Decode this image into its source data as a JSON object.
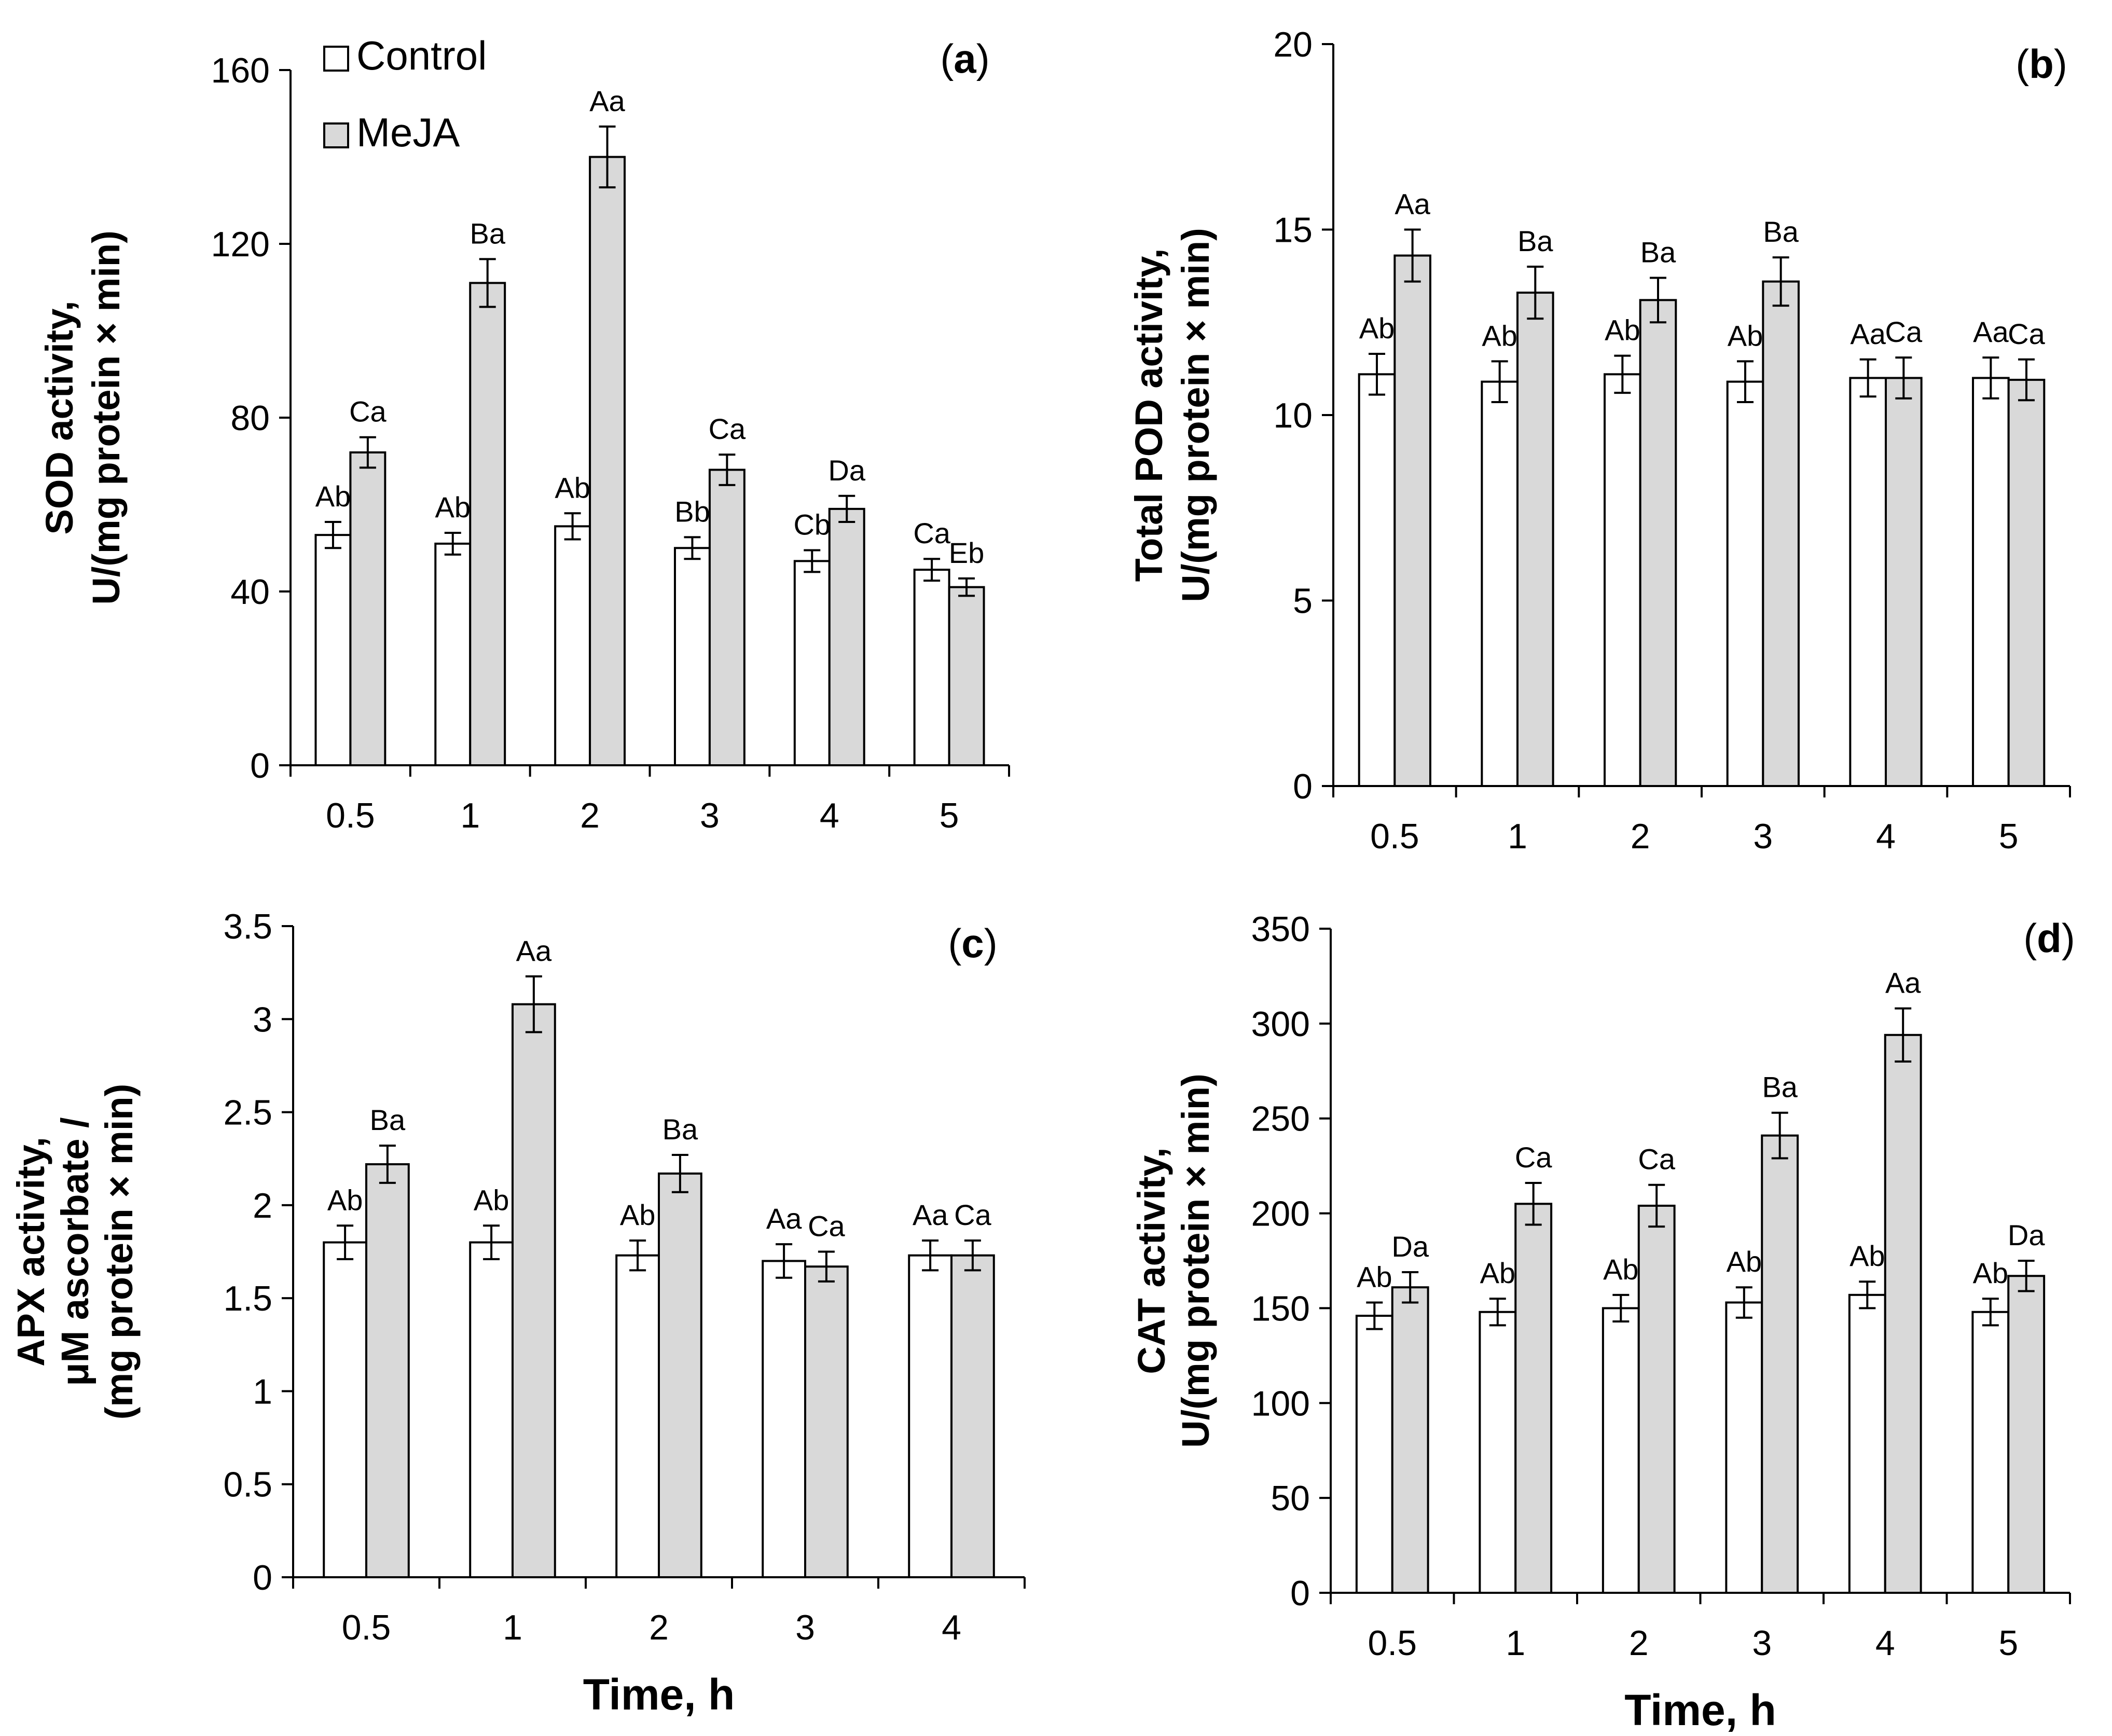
{
  "chart_data": [
    {
      "type": "bar",
      "panel_label": "a",
      "ylabel": [
        "SOD activity,",
        "U/(mg protein × min)"
      ],
      "xlabel": "",
      "ylim": [
        0,
        160
      ],
      "yticks": [
        "0",
        "40",
        "80",
        "120",
        "160"
      ],
      "categories": [
        "0.5",
        "1",
        "2",
        "3",
        "4",
        "5"
      ],
      "series": [
        {
          "name": "Control",
          "color": "#ffffff",
          "values": [
            53,
            51,
            55,
            50,
            47,
            45
          ],
          "errors": [
            3,
            2.5,
            3,
            2.5,
            2.5,
            2.5
          ],
          "labels": [
            "Ab",
            "Ab",
            "Ab",
            "Bb",
            "Cb",
            "Ca"
          ]
        },
        {
          "name": "MeJA",
          "color": "#d9d9d9",
          "values": [
            72,
            111,
            140,
            68,
            59,
            41
          ],
          "errors": [
            3.5,
            5.5,
            7,
            3.5,
            3,
            2
          ],
          "labels": [
            "Ca",
            "Ba",
            "Aa",
            "Ca",
            "Da",
            "Eb"
          ]
        }
      ],
      "legend": [
        "Control",
        "MeJA"
      ]
    },
    {
      "type": "bar",
      "panel_label": "b",
      "ylabel": [
        "Total POD activity,",
        "U/(mg protein × min)"
      ],
      "xlabel": "",
      "ylim": [
        0,
        20
      ],
      "yticks": [
        "0",
        "5",
        "10",
        "15",
        "20"
      ],
      "categories": [
        "0.5",
        "1",
        "2",
        "3",
        "4",
        "5"
      ],
      "series": [
        {
          "name": "Control",
          "color": "#ffffff",
          "values": [
            11.1,
            10.9,
            11.1,
            10.9,
            11.0,
            11.0
          ],
          "errors": [
            0.55,
            0.55,
            0.5,
            0.55,
            0.5,
            0.55
          ],
          "labels": [
            "Ab",
            "Ab",
            "Ab",
            "Ab",
            "Aa",
            "Aa"
          ]
        },
        {
          "name": "MeJA",
          "color": "#d9d9d9",
          "values": [
            14.3,
            13.3,
            13.1,
            13.6,
            11.0,
            10.95
          ],
          "errors": [
            0.7,
            0.7,
            0.6,
            0.65,
            0.55,
            0.55
          ],
          "labels": [
            "Aa",
            "Ba",
            "Ba",
            "Ba",
            "Ca",
            "Ca"
          ]
        }
      ]
    },
    {
      "type": "bar",
      "panel_label": "c",
      "ylabel": [
        "APX activity,",
        "μM ascorbate /",
        "(mg protein × min)"
      ],
      "xlabel": "Time, h",
      "ylim": [
        0,
        3.5
      ],
      "yticks": [
        "0",
        "0.5",
        "1",
        "1.5",
        "2",
        "2.5",
        "3",
        "3.5"
      ],
      "categories": [
        "0.5",
        "1",
        "2",
        "3",
        "4"
      ],
      "series": [
        {
          "name": "Control",
          "color": "#ffffff",
          "values": [
            1.8,
            1.8,
            1.73,
            1.7,
            1.73
          ],
          "errors": [
            0.09,
            0.09,
            0.08,
            0.09,
            0.08
          ],
          "labels": [
            "Ab",
            "Ab",
            "Ab",
            "Aa",
            "Aa"
          ]
        },
        {
          "name": "MeJA",
          "color": "#d9d9d9",
          "values": [
            2.22,
            3.08,
            2.17,
            1.67,
            1.73
          ],
          "errors": [
            0.1,
            0.15,
            0.1,
            0.08,
            0.08
          ],
          "labels": [
            "Ba",
            "Aa",
            "Ba",
            "Ca",
            "Ca"
          ]
        }
      ]
    },
    {
      "type": "bar",
      "panel_label": "d",
      "ylabel": [
        "CAT activity,",
        "U/(mg protein × min)"
      ],
      "xlabel": "Time, h",
      "ylim": [
        0,
        350
      ],
      "yticks": [
        "0",
        "50",
        "100",
        "150",
        "200",
        "250",
        "300",
        "350"
      ],
      "categories": [
        "0.5",
        "1",
        "2",
        "3",
        "4",
        "5"
      ],
      "series": [
        {
          "name": "Control",
          "color": "#ffffff",
          "values": [
            146,
            148,
            150,
            153,
            157,
            148
          ],
          "errors": [
            7,
            7,
            7,
            8,
            7,
            7
          ],
          "labels": [
            "Ab",
            "Ab",
            "Ab",
            "Ab",
            "Ab",
            "Ab"
          ]
        },
        {
          "name": "MeJA",
          "color": "#d9d9d9",
          "values": [
            161,
            205,
            204,
            241,
            294,
            167
          ],
          "errors": [
            8,
            11,
            11,
            12,
            14,
            8
          ],
          "labels": [
            "Da",
            "Ca",
            "Ca",
            "Ba",
            "Aa",
            "Da"
          ]
        }
      ]
    }
  ]
}
